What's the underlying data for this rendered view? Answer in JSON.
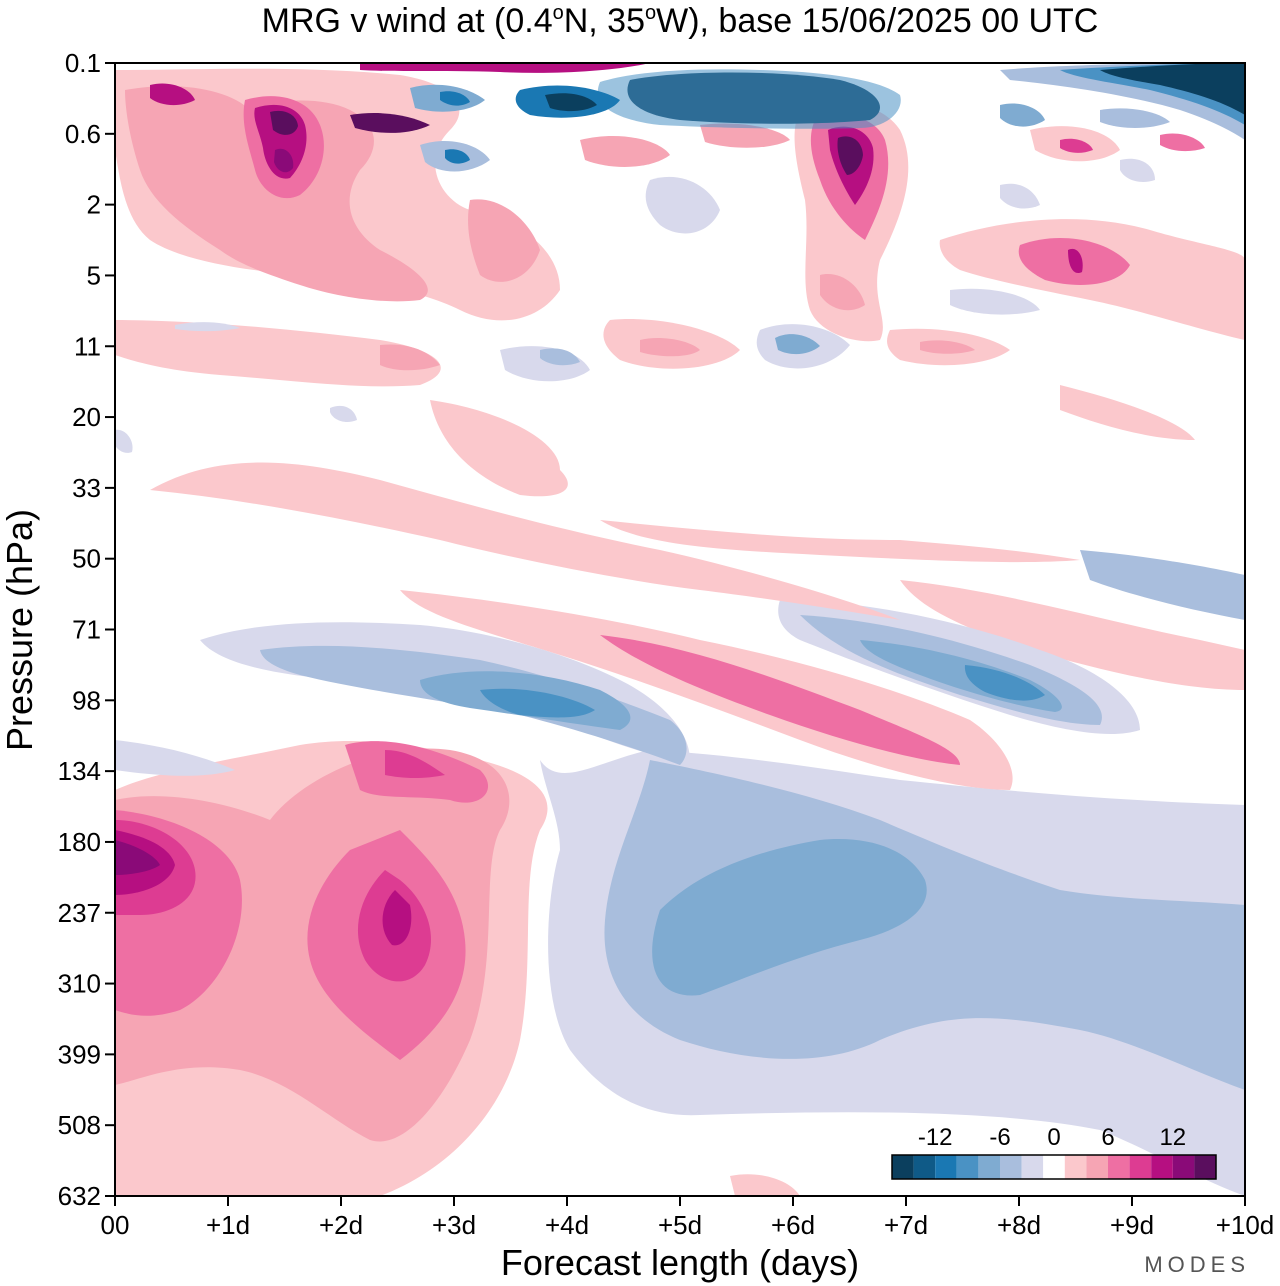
{
  "chart_data": {
    "type": "heatmap",
    "title_parts": [
      "MRG v wind at (0.4",
      "o",
      "N, 35",
      "o",
      "W),  base 15/06/2025  00 UTC"
    ],
    "xlabel": "Forecast length (days)",
    "ylabel": "Pressure (hPa)",
    "x_ticks": [
      "00",
      "+1d",
      "+2d",
      "+3d",
      "+4d",
      "+5d",
      "+6d",
      "+7d",
      "+8d",
      "+9d",
      "+10d"
    ],
    "y_ticks": [
      "0.1",
      "0.6",
      "2",
      "5",
      "11",
      "20",
      "33",
      "50",
      "71",
      "98",
      "134",
      "180",
      "237",
      "310",
      "399",
      "508",
      "632"
    ],
    "x_range_days": [
      0,
      10
    ],
    "grid": false,
    "colorbar": {
      "placement": "bottom-right",
      "tick_labels": [
        "-12",
        "-6",
        "0",
        "6",
        "12"
      ],
      "tick_values": [
        -12,
        -6,
        0,
        6,
        12
      ],
      "bins": [
        -16,
        -14,
        -12,
        -10,
        -8,
        -6,
        -4,
        -2,
        2,
        4,
        6,
        8,
        10,
        12,
        14,
        16
      ],
      "colors": [
        "#0b3f5e",
        "#0f5a87",
        "#1a78b3",
        "#4a92c4",
        "#7fabd1",
        "#a9bedd",
        "#d8d9ec",
        "#ffffff",
        "#fbc8cc",
        "#f6a5b4",
        "#ee6fa3",
        "#dd3c92",
        "#b60f81",
        "#8a0a78",
        "#5a0e5e"
      ]
    },
    "features": [
      {
        "x": 0.6,
        "level": "180",
        "value": 12
      },
      {
        "x": 2.5,
        "level": "237",
        "value": 11
      },
      {
        "x": 2.5,
        "level": "134",
        "value": 7
      },
      {
        "x": 4.0,
        "level": "98",
        "value": -10
      },
      {
        "x": 5.5,
        "level": "98",
        "value": 8
      },
      {
        "x": 5.6,
        "level": "237",
        "value": -8
      },
      {
        "x": 7.9,
        "level": "98",
        "value": -10
      },
      {
        "x": 6.5,
        "level": "0.6",
        "value": 14
      },
      {
        "x": 1.5,
        "level": "0.6",
        "value": 14
      },
      {
        "x": 5.5,
        "level": "0.1",
        "value": -16
      },
      {
        "x": 9.5,
        "level": "0.1",
        "value": -16
      }
    ]
  },
  "watermark": "MODES"
}
